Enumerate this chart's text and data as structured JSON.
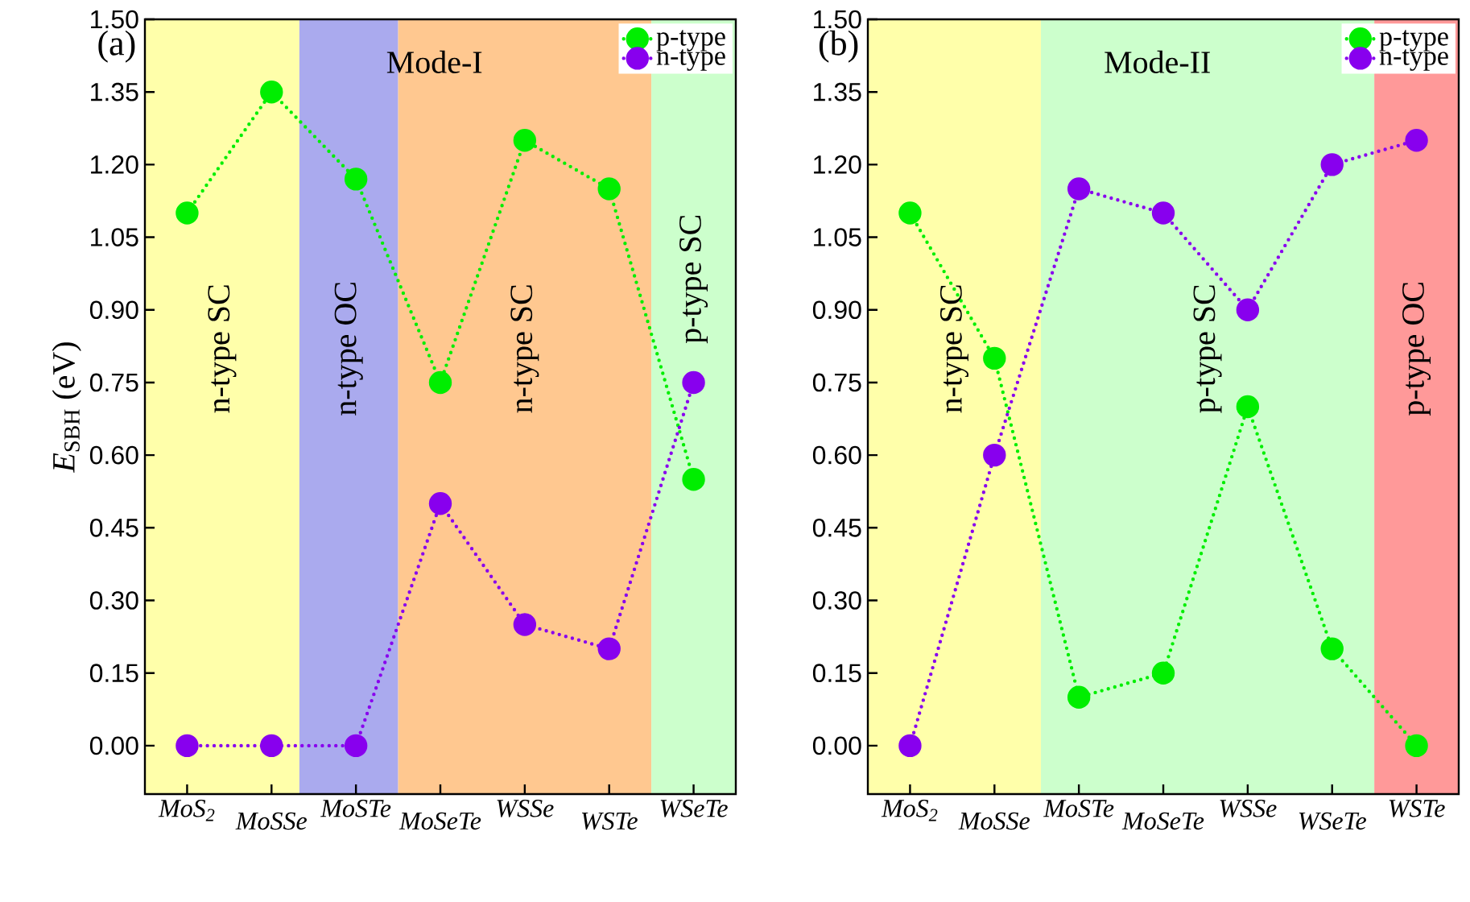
{
  "chart_data": [
    {
      "type": "line",
      "ylabel": "*E*$_{SBH}$ (eV)",
      "annotations": [
        "(a)",
        "Mode-I",
        "n-type SC",
        "n-type OC",
        "n-type SC",
        "p-type SC"
      ],
      "categories": [
        "MoS$_{2}$",
        "MoSSe",
        "MoSTe",
        "MoSeTe",
        "WSSe",
        "WSTe",
        "WSeTe"
      ],
      "series": [
        {
          "name": "p-type",
          "color": "#00ee00",
          "values": [
            1.1,
            1.35,
            1.17,
            0.75,
            1.25,
            1.15,
            0.55
          ]
        },
        {
          "name": "n-type",
          "color": "#8800ee",
          "values": [
            0.0,
            0.0,
            0.0,
            0.5,
            0.25,
            0.2,
            0.75
          ]
        }
      ],
      "ylim": [
        -0.1,
        1.5
      ],
      "yticks": [
        {
          "value": 0,
          "label": "0.00"
        },
        0.15,
        {
          "value": 0.3,
          "label": "0.30"
        },
        0.45,
        {
          "value": 0.6,
          "label": "0.60"
        },
        0.75,
        {
          "value": 0.9,
          "label": "0.90"
        },
        1.05,
        {
          "value": 1.2,
          "label": "1.20"
        },
        1.35,
        {
          "value": 1.5,
          "label": "1.50"
        }
      ],
      "legend": "top right",
      "line_style": "dotted",
      "marker": "circle"
    },
    {
      "type": "line",
      "annotations": [
        "(b)",
        "Mode-II",
        "n-type SC",
        "p-type SC",
        "p-type OC"
      ],
      "categories": [
        "MoS$_{2}$",
        "MoSSe",
        "MoSTe",
        "MoSeTe",
        "WSSe",
        "WSeTe",
        "WSTe"
      ],
      "series": [
        {
          "name": "p-type",
          "color": "#00ee00",
          "values": [
            1.1,
            0.8,
            0.1,
            0.15,
            0.7,
            0.2,
            0.0
          ]
        },
        {
          "name": "n-type",
          "color": "#8800ee",
          "values": [
            0.0,
            0.6,
            1.15,
            1.1,
            0.9,
            1.2,
            1.25
          ]
        }
      ],
      "ylim": [
        -0.1,
        1.5
      ],
      "yticks": [
        {
          "value": 0,
          "label": "0.00"
        },
        0.15,
        {
          "value": 0.3,
          "label": "0.30"
        },
        0.45,
        {
          "value": 0.6,
          "label": "0.60"
        },
        0.75,
        {
          "value": 0.9,
          "label": "0.90"
        },
        1.05,
        {
          "value": 1.2,
          "label": "1.20"
        },
        1.35,
        {
          "value": 1.5,
          "label": "1.50"
        }
      ],
      "legend": "top right",
      "line_style": "dotted",
      "marker": "circle"
    }
  ]
}
